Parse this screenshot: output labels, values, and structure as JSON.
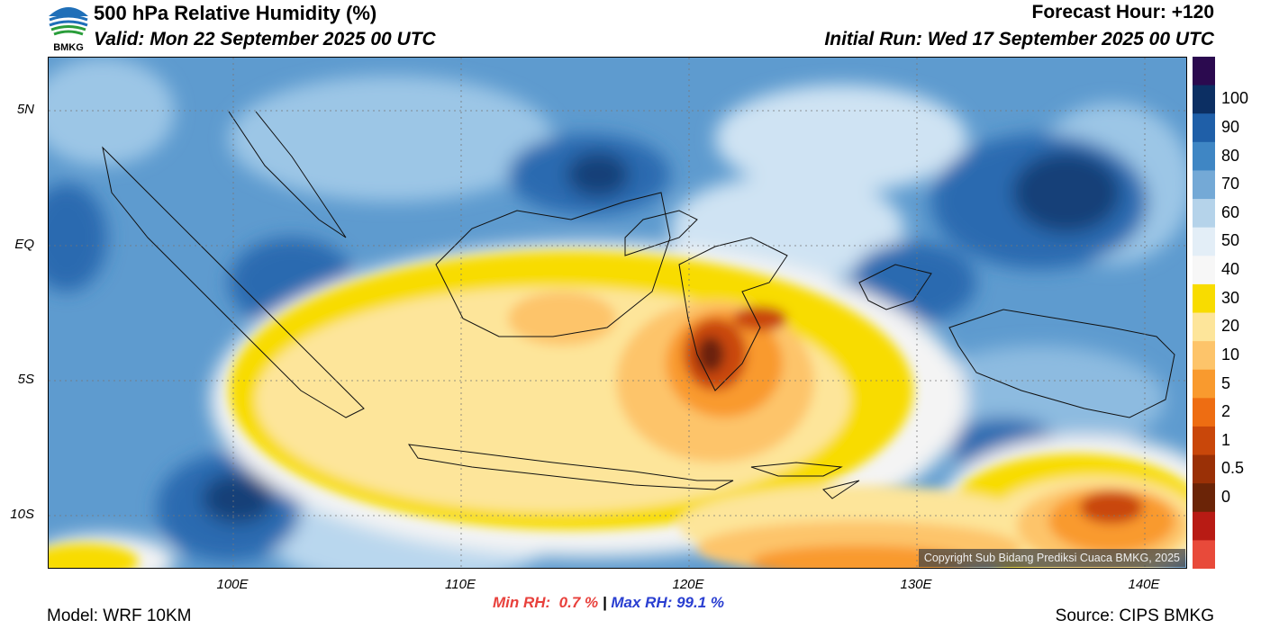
{
  "header": {
    "title": "500 hPa Relative Humidity (%)",
    "valid": "Valid: Mon 22 September 2025 00 UTC",
    "forecast_hour": "Forecast Hour: +120",
    "initial_run": "Initial Run: Wed 17 September 2025 00 UTC",
    "logo_text": "BMKG"
  },
  "axes": {
    "y_labels": [
      "5N",
      "EQ",
      "5S",
      "10S"
    ],
    "x_labels": [
      "100E",
      "110E",
      "120E",
      "130E",
      "140E"
    ]
  },
  "colorbar": {
    "labels": [
      "100",
      "90",
      "80",
      "70",
      "60",
      "50",
      "40",
      "30",
      "20",
      "10",
      "5",
      "2",
      "1",
      "0.5",
      "0"
    ],
    "colors": [
      "#2b0a4f",
      "#0c2f63",
      "#1f5fa8",
      "#3f86c4",
      "#74a9d6",
      "#b5d3ea",
      "#e3eef7",
      "#f7f7f7",
      "#f8dc00",
      "#fde59a",
      "#fdc46a",
      "#f99a2e",
      "#ee6d12",
      "#c9470a",
      "#9a3006",
      "#6b2407",
      "#b81b14",
      "#e84a3a"
    ]
  },
  "stats": {
    "min_label": "Min RH: ",
    "min_value": " 0.7 %",
    "separator": " | ",
    "max_label": "Max RH: ",
    "max_value": "99.1 %"
  },
  "footer": {
    "model": "Model: WRF 10KM",
    "source": "Source: CIPS BMKG",
    "copyright": "Copyright Sub Bidang Prediksi Cuaca BMKG, 2025"
  }
}
